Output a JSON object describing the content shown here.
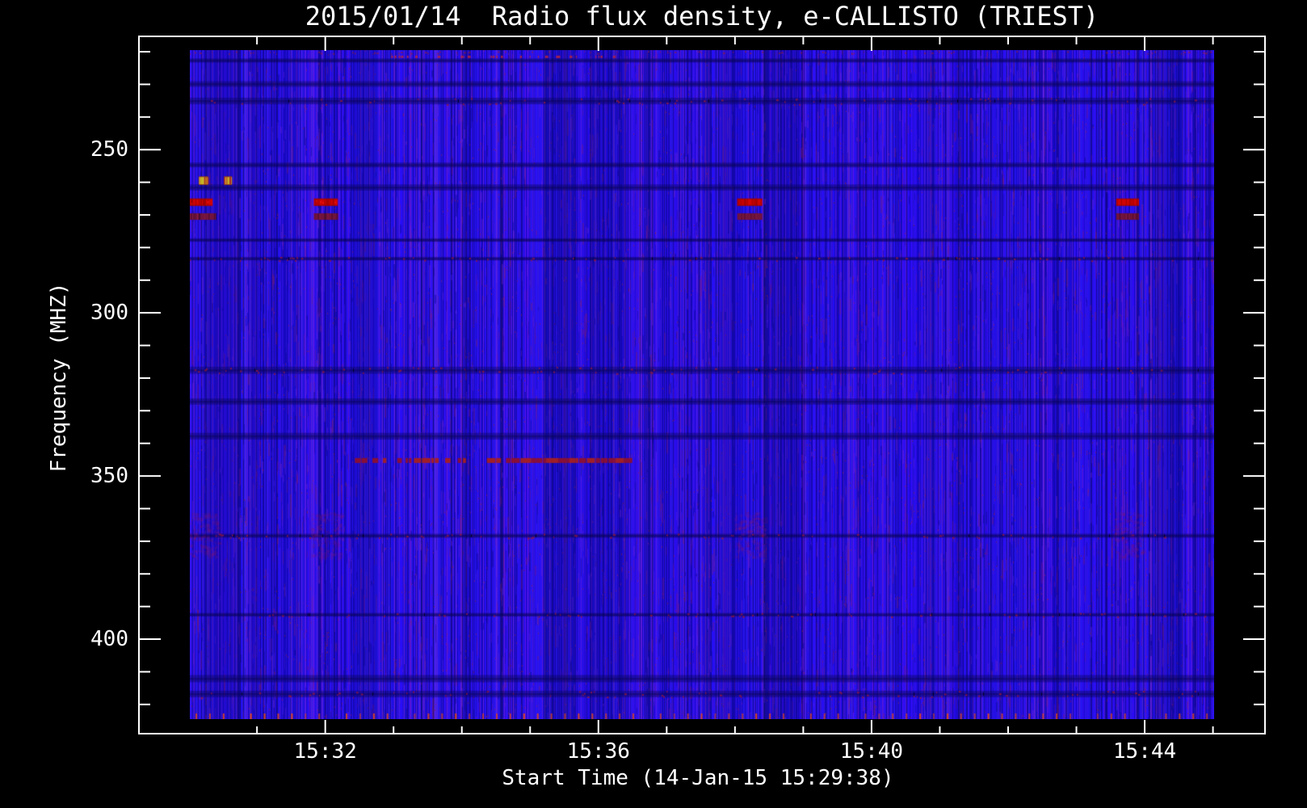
{
  "title": "2015/01/14  Radio flux density, e-CALLISTO (TRIEST)",
  "axes": {
    "x": {
      "label": "Start Time (14-Jan-15 15:29:38)",
      "major_ticks": [
        {
          "label": "15:32",
          "t_sec": 1920
        },
        {
          "label": "15:36",
          "t_sec": 2160
        },
        {
          "label": "15:40",
          "t_sec": 2400
        },
        {
          "label": "15:44",
          "t_sec": 2640
        }
      ],
      "minor_tick_every_sec": 60,
      "time_range_sec_after_1500": [
        1801,
        2701
      ]
    },
    "y": {
      "label": "Frequency (MHZ)",
      "major_ticks": [
        {
          "label": "250",
          "mhz": 250
        },
        {
          "label": "300",
          "mhz": 300
        },
        {
          "label": "350",
          "mhz": 350
        },
        {
          "label": "400",
          "mhz": 400
        }
      ],
      "minor_tick_every_mhz": 10,
      "freq_range_mhz": [
        219.5,
        424.5
      ],
      "direction": "frequency increases downward"
    }
  },
  "chart_data": {
    "type": "heatmap",
    "title": "2015/01/14  Radio flux density, e-CALLISTO (TRIEST)",
    "xlabel": "Start Time (14-Jan-15 15:29:38)",
    "ylabel": "Frequency (MHZ)",
    "x_range_time": [
      "15:30:01",
      "15:45:01"
    ],
    "y_range_mhz": [
      219.5,
      424.5
    ],
    "background": "uniform low-flux blue with fine vertical noise striping and faint dark horizontal interference rows",
    "features": [
      {
        "kind": "yellow_patch",
        "label": "bright burst",
        "t_sec": [
          1809,
          1817
        ],
        "mhz": [
          258.4,
          260.6
        ]
      },
      {
        "kind": "yellow_patch",
        "label": "bright burst",
        "t_sec": [
          1831,
          1838
        ],
        "mhz": [
          258.4,
          260.6
        ]
      },
      {
        "kind": "red_band",
        "label": "strong RFI ~266 MHz",
        "t_sec": [
          1801,
          1821
        ],
        "mhz": [
          265.0,
          267.2
        ]
      },
      {
        "kind": "red_band",
        "label": "strong RFI ~266 MHz",
        "t_sec": [
          1910,
          1931
        ],
        "mhz": [
          265.0,
          267.2
        ]
      },
      {
        "kind": "red_band",
        "label": "strong RFI ~266 MHz",
        "t_sec": [
          2282,
          2304
        ],
        "mhz": [
          265.0,
          267.2
        ]
      },
      {
        "kind": "red_band",
        "label": "strong RFI ~266 MHz",
        "t_sec": [
          2615,
          2635
        ],
        "mhz": [
          265.0,
          267.2
        ]
      },
      {
        "kind": "dark_red_band",
        "label": "RFI ~270 MHz",
        "t_sec": [
          1801,
          1824
        ],
        "mhz": [
          269.5,
          271.5
        ]
      },
      {
        "kind": "dark_red_band",
        "label": "RFI ~270 MHz",
        "t_sec": [
          1910,
          1931
        ],
        "mhz": [
          269.5,
          271.5
        ]
      },
      {
        "kind": "dark_red_band",
        "label": "RFI ~270 MHz",
        "t_sec": [
          2282,
          2304
        ],
        "mhz": [
          269.5,
          271.5
        ]
      },
      {
        "kind": "dark_red_band",
        "label": "RFI ~270 MHz",
        "t_sec": [
          2615,
          2635
        ],
        "mhz": [
          269.5,
          271.5
        ]
      },
      {
        "kind": "smudge",
        "label": "faint purple artifact 361-375 MHz",
        "t_sec": [
          1801,
          1824
        ],
        "mhz": [
          361,
          375
        ]
      },
      {
        "kind": "smudge",
        "label": "faint purple artifact 361-375 MHz",
        "t_sec": [
          1910,
          1931
        ],
        "mhz": [
          361,
          375
        ]
      },
      {
        "kind": "smudge",
        "label": "faint purple artifact 361-375 MHz",
        "t_sec": [
          2282,
          2304
        ],
        "mhz": [
          361,
          375
        ]
      },
      {
        "kind": "smudge",
        "label": "faint purple artifact 361-375 MHz",
        "t_sec": [
          2615,
          2635
        ],
        "mhz": [
          361,
          375
        ]
      },
      {
        "kind": "dashed_row",
        "label": "intermittent RFI ~345 MHz",
        "t_sec": [
          1946,
          2184
        ],
        "mhz": [
          344.5,
          346.0
        ]
      },
      {
        "kind": "dotted_row",
        "label": "faint RFI dots ~221 MHz",
        "t_sec": [
          1978,
          2174
        ],
        "mhz": [
          221.2,
          222.0
        ]
      },
      {
        "kind": "tick_row",
        "label": "periodic red marks along bottom edge",
        "t_sec": [
          1806,
          2698
        ],
        "mhz": [
          423.0,
          424.3
        ],
        "spacing_sec": 12
      }
    ],
    "dark_rows_mhz": [
      222.7,
      229.9,
      235.1,
      254.7,
      261.6,
      277.7,
      283.4,
      317.6,
      327.2,
      337.8,
      368.3,
      392.5,
      412.1,
      416.8
    ],
    "speckled_rows_mhz": [
      235.1,
      283.4,
      317.6,
      368.3,
      392.5,
      416.8
    ],
    "legend": "none",
    "grid": "off"
  },
  "colors": {
    "background": "#000000",
    "frame": "#ffffff",
    "text": "#ffffff",
    "base_blue": "#2418e4",
    "dark_blue": "#16088c",
    "purple_streak": "#6a22cc",
    "maroon_speckle": "#8c1858",
    "bright_red": "#d10404",
    "dark_red": "#70143c",
    "yellow": "#eede02",
    "orange": "#e8a400",
    "bottom_tick_red": "#e04619"
  }
}
